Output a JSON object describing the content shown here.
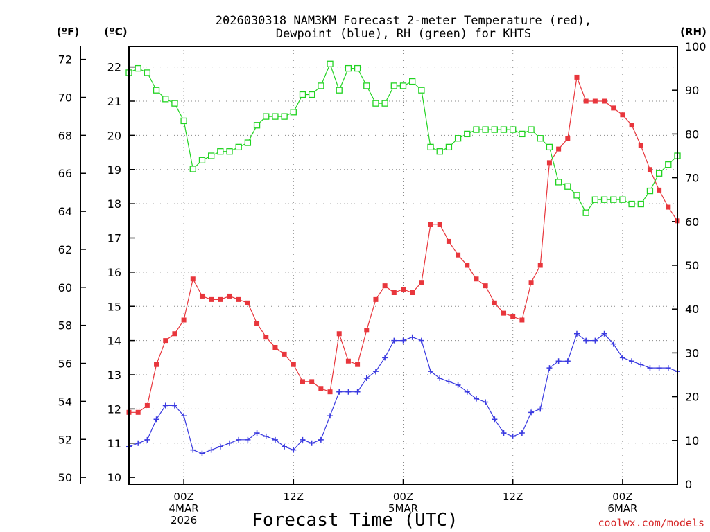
{
  "chart_data": {
    "type": "line",
    "title": [
      "2026030318 NAM3KM Forecast 2-meter Temperature (red),",
      "Dewpoint (blue), RH (green) for KHTS"
    ],
    "xlabel": "Forecast Time (UTC)",
    "source_label": "coolwx.com/models",
    "source_color": "#d62728",
    "axis_units": {
      "left_outer": "(ºF)",
      "left_inner": "(ºC)",
      "right": "(RH)"
    },
    "x_ticks": [
      {
        "hour": 6,
        "lines": [
          "00Z",
          "4MAR",
          "2026"
        ]
      },
      {
        "hour": 18,
        "lines": [
          "12Z"
        ]
      },
      {
        "hour": 30,
        "lines": [
          "00Z",
          "5MAR"
        ]
      },
      {
        "hour": 42,
        "lines": [
          "12Z"
        ]
      },
      {
        "hour": 54,
        "lines": [
          "00Z",
          "6MAR"
        ]
      }
    ],
    "x_range": [
      0,
      60
    ],
    "celsius_range": [
      9.8,
      22.6
    ],
    "celsius_ticks": [
      10,
      11,
      12,
      13,
      14,
      15,
      16,
      17,
      18,
      19,
      20,
      21,
      22
    ],
    "fahrenheit_ticks": [
      50,
      52,
      54,
      56,
      58,
      60,
      62,
      64,
      66,
      68,
      70,
      72
    ],
    "rh_range": [
      0,
      100
    ],
    "rh_ticks": [
      0,
      10,
      20,
      30,
      40,
      50,
      60,
      70,
      80,
      90,
      100
    ],
    "series": [
      {
        "name": "Temperature",
        "unit": "C",
        "color": "#e8363c",
        "marker": "filled-square",
        "values": [
          11.9,
          11.9,
          12.1,
          13.3,
          14.0,
          14.2,
          14.6,
          15.8,
          15.3,
          15.2,
          15.2,
          15.3,
          15.2,
          15.1,
          14.5,
          14.1,
          13.8,
          13.6,
          13.3,
          12.8,
          12.8,
          12.6,
          12.5,
          14.2,
          13.4,
          13.3,
          14.3,
          15.2,
          15.6,
          15.4,
          15.5,
          15.4,
          15.7,
          17.4,
          17.4,
          16.9,
          16.5,
          16.2,
          15.8,
          15.6,
          15.1,
          14.8,
          14.7,
          14.6,
          15.7,
          16.2,
          19.2,
          19.6,
          19.9,
          21.7,
          21.0,
          21.0,
          21.0,
          20.8,
          20.6,
          20.3,
          19.7,
          19.0,
          18.4,
          17.9,
          17.5
        ]
      },
      {
        "name": "Dewpoint",
        "unit": "C",
        "color": "#3a3ae0",
        "marker": "plus",
        "values": [
          10.9,
          11.0,
          11.1,
          11.7,
          12.1,
          12.1,
          11.8,
          10.8,
          10.7,
          10.8,
          10.9,
          11.0,
          11.1,
          11.1,
          11.3,
          11.2,
          11.1,
          10.9,
          10.8,
          11.1,
          11.0,
          11.1,
          11.8,
          12.5,
          12.5,
          12.5,
          12.9,
          13.1,
          13.5,
          14.0,
          14.0,
          14.1,
          14.0,
          13.1,
          12.9,
          12.8,
          12.7,
          12.5,
          12.3,
          12.2,
          11.7,
          11.3,
          11.2,
          11.3,
          11.9,
          12.0,
          13.2,
          13.4,
          13.4,
          14.2,
          14.0,
          14.0,
          14.2,
          13.9,
          13.5,
          13.4,
          13.3,
          13.2,
          13.2,
          13.2,
          13.1
        ]
      },
      {
        "name": "RH",
        "unit": "%",
        "color": "#22d322",
        "marker": "open-square",
        "values": [
          94,
          95,
          94,
          90,
          88,
          87,
          83,
          72,
          74,
          75,
          76,
          76,
          77,
          78,
          82,
          84,
          84,
          84,
          85,
          89,
          89,
          91,
          96,
          90,
          95,
          95,
          91,
          87,
          87,
          91,
          91,
          92,
          90,
          77,
          76,
          77,
          79,
          80,
          81,
          81,
          81,
          81,
          81,
          80,
          81,
          79,
          77,
          69,
          68,
          66,
          62,
          65,
          65,
          65,
          65,
          64,
          64,
          67,
          71,
          73,
          75
        ]
      }
    ]
  }
}
